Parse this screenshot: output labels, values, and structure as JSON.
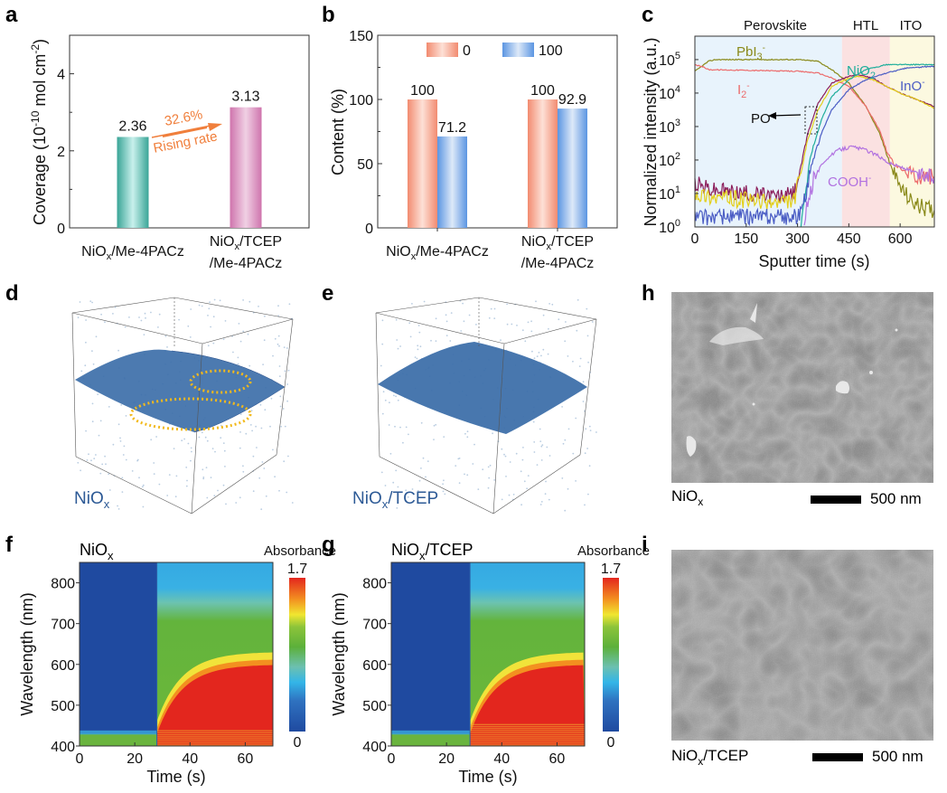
{
  "panels": {
    "a": {
      "label": "a"
    },
    "b": {
      "label": "b"
    },
    "c": {
      "label": "c"
    },
    "d": {
      "label": "d",
      "sample": "NiOx"
    },
    "e": {
      "label": "e",
      "sample": "NiOx/TCEP"
    },
    "f": {
      "label": "f"
    },
    "g": {
      "label": "g"
    },
    "h": {
      "label": "h",
      "sample": "NiOx",
      "scalebar": "500 nm"
    },
    "i": {
      "label": "i",
      "sample": "NiOx/TCEP",
      "scalebar": "500 nm"
    }
  },
  "chart_data": [
    {
      "id": "a",
      "type": "bar",
      "ylabel": "Coverage (10^-10 mol cm^-2)",
      "categories": [
        "NiOx/Me-4PACz",
        "NiOx/TCEP /Me-4PACz"
      ],
      "values": [
        2.36,
        3.13
      ],
      "data_labels": [
        "2.36",
        "3.13"
      ],
      "colors": [
        "#4db3a8",
        "#d98cbf"
      ],
      "ylim": [
        0,
        5
      ],
      "yticks": [
        0,
        2,
        4
      ],
      "annotation": {
        "text_top": "32.6%",
        "text_bottom": "Rising rate",
        "color": "#f07f3c"
      }
    },
    {
      "id": "b",
      "type": "bar",
      "ylabel": "Content (%)",
      "categories": [
        "NiOx/Me-4PACz",
        "NiOx/TCEP /Me-4PACz"
      ],
      "series": [
        {
          "name": "0",
          "values": [
            100,
            100
          ],
          "color": "#f4907a"
        },
        {
          "name": "100",
          "values": [
            71.2,
            92.9
          ],
          "color": "#6fa3e6"
        }
      ],
      "data_labels": [
        [
          "100",
          "71.2"
        ],
        [
          "100",
          "92.9"
        ]
      ],
      "ylim": [
        0,
        150
      ],
      "yticks": [
        0,
        50,
        100,
        150
      ],
      "legend": "top-center"
    },
    {
      "id": "c",
      "type": "line",
      "xlabel": "Sputter time (s)",
      "ylabel": "Normalized intensity (a.u.)",
      "xlim": [
        0,
        700
      ],
      "ylim_log10": [
        0,
        5.7
      ],
      "xticks": [
        0,
        150,
        300,
        450,
        600
      ],
      "yticks": [
        "10^0",
        "10^1",
        "10^2",
        "10^3",
        "10^4",
        "10^5"
      ],
      "regions": [
        {
          "name": "Perovskite",
          "from": 0,
          "to": 430,
          "color": "#e8f3fc"
        },
        {
          "name": "HTL",
          "from": 430,
          "to": 570,
          "color": "#fbe1e1"
        },
        {
          "name": "ITO",
          "from": 570,
          "to": 700,
          "color": "#fcf9e0"
        }
      ],
      "series": [
        {
          "name": "PbI3-",
          "color": "#8a8a1a",
          "x": [
            0,
            40,
            60,
            150,
            300,
            360,
            400,
            450,
            500,
            540,
            560,
            580,
            600,
            630,
            660,
            700
          ],
          "log10y": [
            4.65,
            4.95,
            5.0,
            5.0,
            5.0,
            4.95,
            4.7,
            4.3,
            3.6,
            2.8,
            2.2,
            1.6,
            1.2,
            0.8,
            0.6,
            0.5
          ]
        },
        {
          "name": "I2-",
          "color": "#ec6b6b",
          "x": [
            0,
            20,
            40,
            150,
            300,
            360,
            400,
            450,
            500,
            540,
            560,
            580,
            620,
            660,
            700
          ],
          "log10y": [
            4.85,
            4.8,
            4.7,
            4.68,
            4.65,
            4.6,
            4.45,
            4.2,
            3.6,
            2.9,
            2.3,
            1.9,
            1.6,
            1.5,
            1.5
          ]
        },
        {
          "name": "PO-",
          "color": "#8b1d5a",
          "x": [
            0,
            50,
            150,
            250,
            290,
            310,
            330,
            360,
            400,
            450,
            480,
            520,
            560,
            600,
            650,
            700
          ],
          "log10y": [
            1.3,
            1.1,
            1.0,
            0.9,
            1.0,
            1.8,
            2.8,
            3.7,
            4.3,
            4.5,
            4.55,
            4.45,
            4.2,
            4.0,
            3.8,
            3.6
          ]
        },
        {
          "name": "Yellow",
          "color": "#e3cf1a",
          "x": [
            0,
            50,
            150,
            250,
            290,
            310,
            330,
            360,
            400,
            450,
            480,
            520,
            560,
            600,
            650,
            700
          ],
          "log10y": [
            1.0,
            0.9,
            0.8,
            0.7,
            0.8,
            1.6,
            2.6,
            3.5,
            4.2,
            4.45,
            4.5,
            4.4,
            4.2,
            4.0,
            3.8,
            3.55
          ]
        },
        {
          "name": "NiO2-",
          "color": "#1fae9b",
          "x": [
            310,
            320,
            340,
            370,
            400,
            450,
            500,
            560,
            620,
            700
          ],
          "log10y": [
            0,
            1.0,
            2.2,
            3.2,
            3.9,
            4.4,
            4.7,
            4.85,
            4.85,
            4.85
          ]
        },
        {
          "name": "InO-",
          "color": "#4a5cc4",
          "x": [
            0,
            300,
            320,
            340,
            370,
            400,
            450,
            500,
            560,
            620,
            700
          ],
          "log10y": [
            0.3,
            0.3,
            0.8,
            1.8,
            2.8,
            3.5,
            4.1,
            4.4,
            4.6,
            4.75,
            4.8
          ]
        },
        {
          "name": "COOH-",
          "color": "#b272e0",
          "x": [
            320,
            330,
            350,
            380,
            420,
            460,
            500,
            540,
            570,
            600,
            650,
            700
          ],
          "log10y": [
            0,
            0.8,
            1.5,
            2.0,
            2.3,
            2.4,
            2.3,
            2.1,
            1.9,
            1.8,
            1.6,
            1.5
          ]
        }
      ],
      "annotations": [
        "Perovskite",
        "HTL",
        "ITO",
        "PbI3-",
        "I2-",
        "NiO2-",
        "InO-",
        "PO-",
        "COOH-"
      ]
    },
    {
      "id": "f",
      "type": "heatmap",
      "title": "NiOx",
      "colorbar_label": "Absorbance",
      "colorbar_range": [
        0,
        1.7
      ],
      "xlabel": "Time (s)",
      "ylabel": "Wavelength (nm)",
      "xlim": [
        0,
        70
      ],
      "ylim": [
        400,
        850
      ],
      "xticks": [
        0,
        20,
        40,
        60
      ],
      "yticks": [
        400,
        500,
        600,
        700,
        800
      ],
      "transition_time": 28
    },
    {
      "id": "g",
      "type": "heatmap",
      "title": "NiOx/TCEP",
      "colorbar_label": "Absorbance",
      "colorbar_range": [
        0,
        1.7
      ],
      "xlabel": "Time (s)",
      "ylabel": "Wavelength (nm)",
      "xlim": [
        0,
        70
      ],
      "ylim": [
        400,
        850
      ],
      "xticks": [
        0,
        20,
        40,
        60
      ],
      "yticks": [
        400,
        500,
        600,
        700,
        800
      ],
      "transition_time": 28.5
    }
  ],
  "text": {
    "a_cat1": "NiO",
    "a_cat1_sub": "x",
    "a_cat1_rest": "/Me-4PACz",
    "a_cat2_l1a": "NiO",
    "a_cat2_l1sub": "x",
    "a_cat2_l1b": "/TCEP",
    "a_cat2_l2": "/Me-4PACz",
    "a_ylabel_pre": "Coverage (10",
    "a_ylabel_sup": "-10",
    "a_ylabel_mid": " mol cm",
    "a_ylabel_sup2": "-2",
    "a_ylabel_end": ")",
    "b_ylabel": "Content (%)",
    "c_region_perov": "Perovskite",
    "c_region_htl": "HTL",
    "c_region_ito": "ITO",
    "absorbance": "Absorbance",
    "cb_max": "1.7",
    "cb_min": "0",
    "time_label": "Time (s)",
    "wl_label": "Wavelength (nm)",
    "sputter_label": "Sputter time (s)",
    "norm_label": "Normalized intensity (a.u.)"
  }
}
